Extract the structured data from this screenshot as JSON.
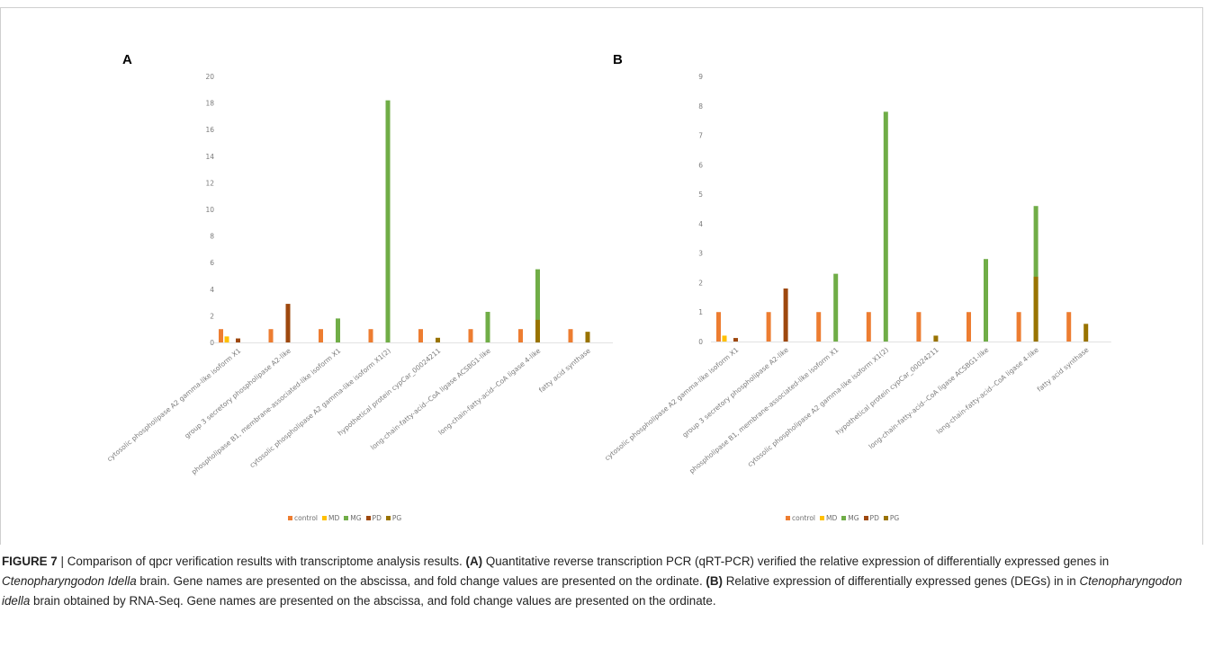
{
  "colors": {
    "control": "#ED7D31",
    "MD": "#FFC000",
    "MG": "#70AD47",
    "PD": "#9E480E",
    "PG": "#997300",
    "axis_text": "#7a7a7a",
    "baseline": "#d9d9d9"
  },
  "chart_data": [
    {
      "panel": "A",
      "type": "bar",
      "categories": [
        "cytosolic phospholipase A2 gamma-like isoform X1",
        "group 3 secretory phospholipase A2-like",
        "phospholipase B1, membrane-associated-like isoform X1",
        "cytosolic phospholipase A2 gamma-like isoform X1(2)",
        "hypothetical protein cypCar_00024211",
        "long-chain-fatty-acid--CoA ligase ACSBG1-like",
        "long-chain-fatty-acid--CoA ligase 4-like",
        "fatty acid synthase"
      ],
      "series": [
        {
          "name": "control",
          "values": [
            1,
            1,
            1,
            1,
            1,
            1,
            1,
            1
          ]
        },
        {
          "name": "MD",
          "values": [
            0.45,
            null,
            null,
            null,
            null,
            null,
            null,
            null
          ]
        },
        {
          "name": "MG",
          "values": [
            null,
            null,
            1.8,
            18.2,
            null,
            2.3,
            5.5,
            null
          ]
        },
        {
          "name": "PD",
          "values": [
            0.3,
            2.9,
            null,
            null,
            null,
            null,
            null,
            null
          ]
        },
        {
          "name": "PG",
          "values": [
            null,
            null,
            null,
            null,
            0.35,
            null,
            1.7,
            0.8
          ]
        }
      ],
      "yticks": [
        "0",
        "2",
        "4",
        "6",
        "8",
        "10",
        "12",
        "14",
        "16",
        "18",
        "20"
      ],
      "ylim": [
        0,
        20
      ],
      "legend": [
        "control",
        "MD",
        "MG",
        "PD",
        "PG"
      ],
      "legend_position": "bottom"
    },
    {
      "panel": "B",
      "type": "bar",
      "categories": [
        "cytosolic phospholipase A2 gamma-like isoform X1",
        "group 3 secretory phospholipase A2-like",
        "phospholipase B1, membrane-associated-like isoform X1",
        "cytosolic phospholipase A2 gamma-like isoform X1(2)",
        "hypothetical protein cypCar_00024211",
        "long-chain-fatty-acid--CoA ligase ACSBG1-like",
        "long-chain-fatty-acid--CoA ligase 4-like",
        "fatty acid synthase"
      ],
      "series": [
        {
          "name": "control",
          "values": [
            1,
            1,
            1,
            1,
            1,
            1,
            1,
            1
          ]
        },
        {
          "name": "MD",
          "values": [
            0.2,
            null,
            null,
            null,
            null,
            null,
            null,
            null
          ]
        },
        {
          "name": "MG",
          "values": [
            null,
            null,
            2.3,
            7.8,
            null,
            2.8,
            4.6,
            null
          ]
        },
        {
          "name": "PD",
          "values": [
            0.12,
            1.8,
            null,
            null,
            null,
            null,
            null,
            null
          ]
        },
        {
          "name": "PG",
          "values": [
            null,
            null,
            null,
            null,
            0.2,
            null,
            2.2,
            0.6
          ]
        }
      ],
      "yticks": [
        "0",
        "1",
        "2",
        "3",
        "4",
        "5",
        "6",
        "7",
        "8",
        "9"
      ],
      "ylim": [
        0,
        9
      ],
      "legend": [
        "control",
        "MD",
        "MG",
        "PD",
        "PG"
      ],
      "legend_position": "bottom"
    }
  ],
  "caption": {
    "label": "FIGURE 7",
    "separator": " | ",
    "t1": "Comparison of qpcr verification results with transcriptome analysis results. ",
    "ref_a": "(A)",
    "t2": " Quantitative reverse transcription PCR (qRT-PCR) verified the relative expression of differentially expressed genes in ",
    "species1": "Ctenopharyngodon Idella",
    "t3": " brain. Gene names are presented on the abscissa, and fold change values are presented on the ordinate. ",
    "ref_b": "(B)",
    "t4": " Relative expression of differentially expressed genes (DEGs) in in ",
    "species2": "Ctenopharyngodon idella",
    "t5": " brain obtained by RNA-Seq. Gene names are presented on the abscissa, and fold change values are presented on the ordinate."
  }
}
